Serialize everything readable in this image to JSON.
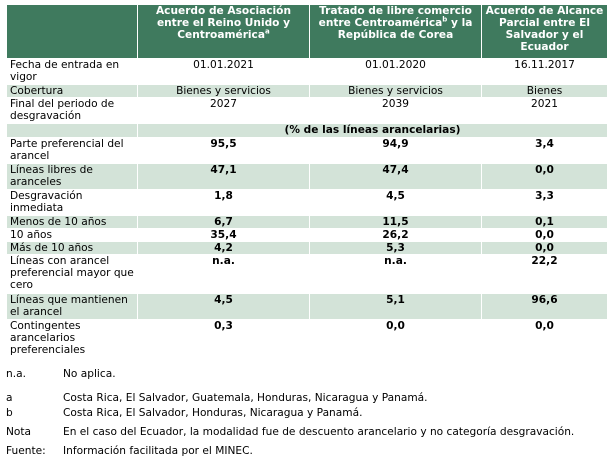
{
  "headers": {
    "col1": "Acuerdo de Asociación entre el Reino Unido y Centroamérica",
    "col1_sup": "a",
    "col2_a": "Tratado de libre comercio entre Centroamérica",
    "col2_sup": "b",
    "col2_b": " y la República de Corea",
    "col3": "Acuerdo de Alcance Parcial entre El Salvador y el Ecuador"
  },
  "rows": {
    "r0": {
      "label": "Fecha de entrada en vigor",
      "c1": "01.01.2021",
      "c2": "01.01.2020",
      "c3": "16.11.2017"
    },
    "r1": {
      "label": "Cobertura",
      "c1": "Bienes y servicios",
      "c2": "Bienes y servicios",
      "c3": "Bienes"
    },
    "r2": {
      "label": "Final del periodo de desgravación",
      "c1": "2027",
      "c2": "2039",
      "c3": "2021"
    },
    "unit": "(% de las líneas arancelarias)",
    "r3": {
      "label": "Parte preferencial del arancel",
      "c1": "95,5",
      "c2": "94,9",
      "c3": "3,4"
    },
    "r4": {
      "label": "Líneas libres de aranceles",
      "c1": "47,1",
      "c2": "47,4",
      "c3": "0,0"
    },
    "r5": {
      "label": "Desgravación inmediata",
      "c1": "1,8",
      "c2": "4,5",
      "c3": "3,3"
    },
    "r6": {
      "label": "Menos de 10 años",
      "c1": "6,7",
      "c2": "11,5",
      "c3": "0,1"
    },
    "r7": {
      "label": "10 años",
      "c1": "35,4",
      "c2": "26,2",
      "c3": "0,0"
    },
    "r8": {
      "label": "Más de 10 años",
      "c1": "4,2",
      "c2": "5,3",
      "c3": "0,0"
    },
    "r9": {
      "label": "Líneas con arancel preferencial mayor que cero",
      "c1": "n.a.",
      "c2": "n.a.",
      "c3": "22,2"
    },
    "r10": {
      "label": "Líneas que mantienen el arancel",
      "c1": "4,5",
      "c2": "5,1",
      "c3": "96,6"
    },
    "r11": {
      "label": "Contingentes arancelarios preferenciales",
      "c1": "0,3",
      "c2": "0,0",
      "c3": "0,0"
    }
  },
  "notes": {
    "na_key": "n.a.",
    "na_text": "No aplica.",
    "a_key": "a",
    "a_text": "Costa Rica, El Salvador, Guatemala, Honduras, Nicaragua y Panamá.",
    "b_key": "b",
    "b_text": "Costa Rica, El Salvador, Honduras, Nicaragua y Panamá.",
    "nota_key": "Nota",
    "nota_text": "En el caso del Ecuador, la modalidad fue de descuento arancelario y no categoría desgravación.",
    "fuente_key": "Fuente:",
    "fuente_text": "Información facilitada por el MINEC."
  },
  "colors": {
    "header_bg": "#3f7a5e",
    "shade_bg": "#d3e3d8"
  }
}
